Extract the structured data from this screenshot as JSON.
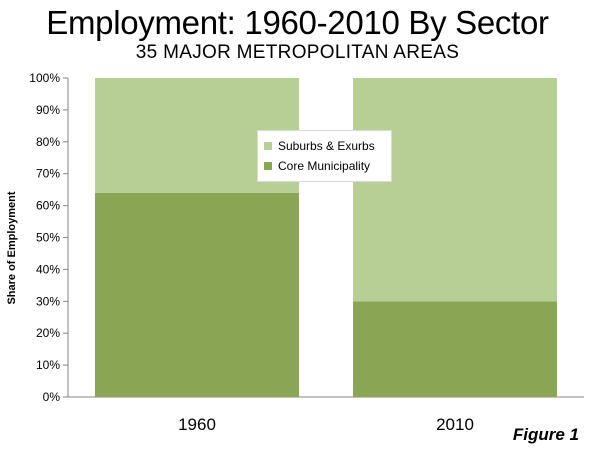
{
  "chart_data": {
    "type": "bar",
    "stacked": true,
    "title": "Employment: 1960-2010 By Sector",
    "subtitle": "35 MAJOR METROPOLITAN AREAS",
    "xlabel": "",
    "ylabel": "Share of Employment",
    "categories": [
      "1960",
      "2010"
    ],
    "series": [
      {
        "name": "Core Municipality",
        "values": [
          64,
          30
        ],
        "color": "#8aa654"
      },
      {
        "name": "Suburbs & Exurbs",
        "values": [
          36,
          70
        ],
        "color": "#b7cf94"
      }
    ],
    "ylim": [
      0,
      100
    ],
    "yticks": [
      "0%",
      "10%",
      "20%",
      "30%",
      "40%",
      "50%",
      "60%",
      "70%",
      "80%",
      "90%",
      "100%"
    ],
    "grid": false,
    "legend_position": "center",
    "legend_order": [
      "Suburbs & Exurbs",
      "Core Municipality"
    ],
    "annotation": "Figure 1"
  }
}
